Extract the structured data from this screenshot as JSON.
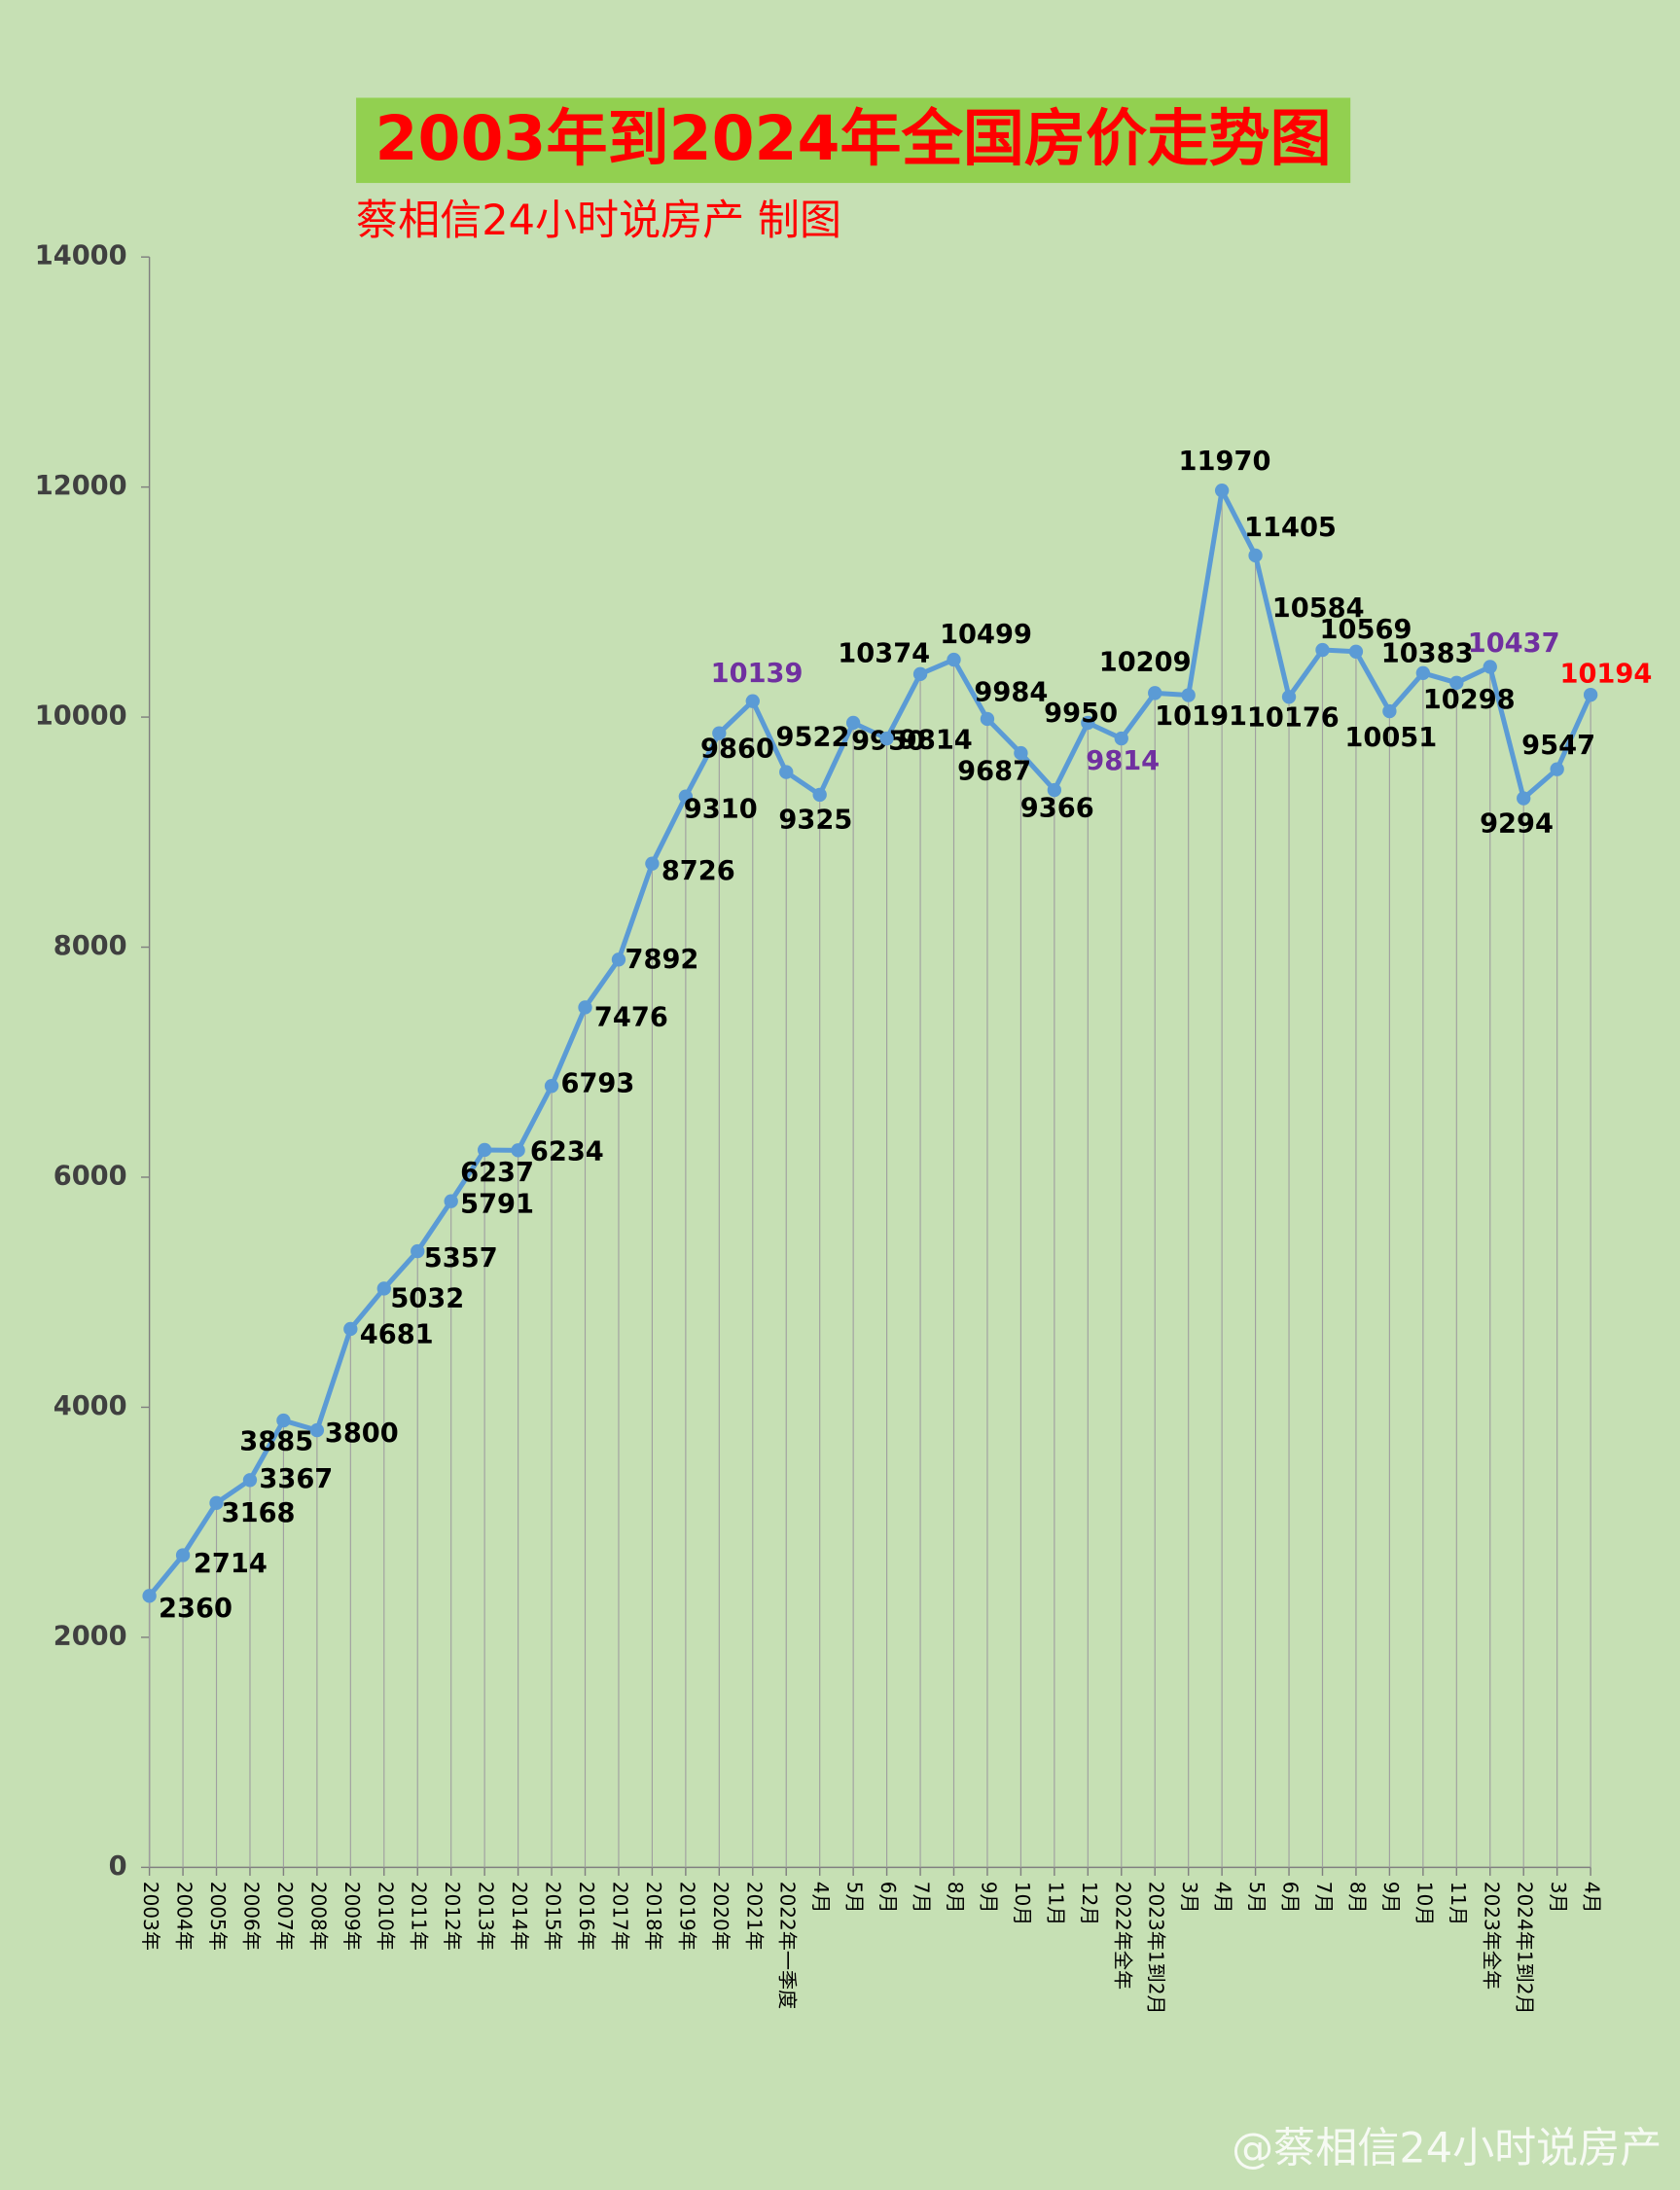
{
  "chart_data": {
    "type": "line",
    "title": "2003年到2024年全国房价走势图",
    "subtitle": "蔡相信24小时说房产 制图",
    "watermark": "@蔡相信24小时说房产",
    "categories": [
      "2003年",
      "2004年",
      "2005年",
      "2006年",
      "2007年",
      "2008年",
      "2009年",
      "2010年",
      "2011年",
      "2012年",
      "2013年",
      "2014年",
      "2015年",
      "2016年",
      "2017年",
      "2018年",
      "2019年",
      "2020年",
      "2021年",
      "2022年一季度",
      "4月",
      "5月",
      "6月",
      "7月",
      "8月",
      "9月",
      "10月",
      "11月",
      "12月",
      "2022年全年",
      "2023年1到2月",
      "3月",
      "4月",
      "5月",
      "6月",
      "7月",
      "8月",
      "9月",
      "10月",
      "11月",
      "2023年全年",
      "2024年1到2月",
      "3月",
      "4月"
    ],
    "series": [
      {
        "name": "全国房价",
        "color": "#5b9bd5",
        "values": [
          2360,
          2714,
          3168,
          3367,
          3885,
          3800,
          4681,
          5032,
          5357,
          5791,
          6237,
          6234,
          6793,
          7476,
          7892,
          8726,
          9310,
          9860,
          10139,
          9522,
          9325,
          9950,
          9814,
          10374,
          10499,
          9984,
          9687,
          9366,
          9950,
          9814,
          10209,
          10191,
          11970,
          11405,
          10176,
          10584,
          10569,
          10051,
          10383,
          10298,
          10437,
          9294,
          9547,
          10194
        ],
        "value_label_colors": [
          "#000000",
          "#000000",
          "#000000",
          "#000000",
          "#000000",
          "#000000",
          "#000000",
          "#000000",
          "#000000",
          "#000000",
          "#000000",
          "#000000",
          "#000000",
          "#000000",
          "#000000",
          "#000000",
          "#000000",
          "#000000",
          "#7030a0",
          "#000000",
          "#000000",
          "#000000",
          "#000000",
          "#000000",
          "#000000",
          "#000000",
          "#000000",
          "#000000",
          "#000000",
          "#7030a0",
          "#000000",
          "#000000",
          "#000000",
          "#000000",
          "#000000",
          "#000000",
          "#000000",
          "#000000",
          "#000000",
          "#000000",
          "#7030a0",
          "#000000",
          "#000000",
          "#ff0000"
        ]
      }
    ],
    "ylim": [
      0,
      14000
    ],
    "yticks": [
      0,
      2000,
      4000,
      6000,
      8000,
      10000,
      12000,
      14000
    ],
    "drop_lines": true
  }
}
